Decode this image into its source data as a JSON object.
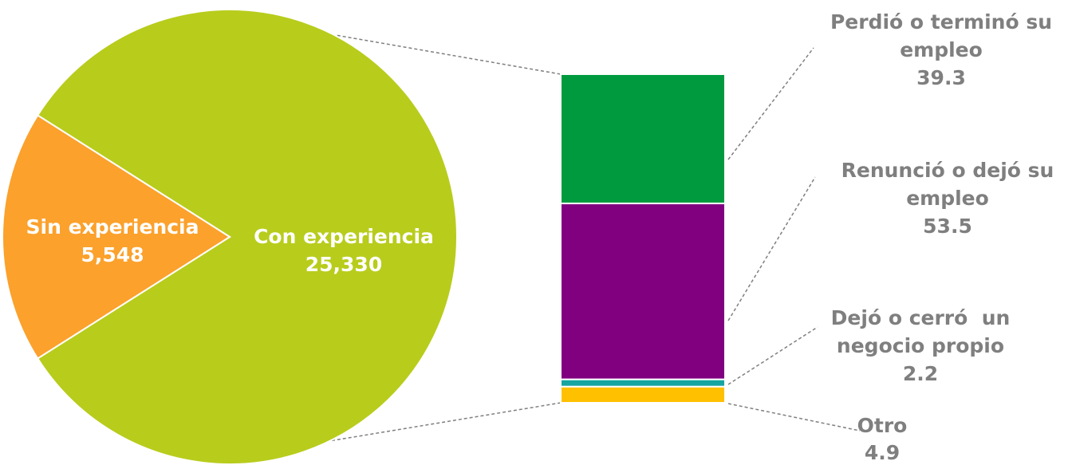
{
  "chart_data": [
    {
      "type": "pie",
      "slices": [
        {
          "label": "Con experiencia",
          "value": 25330,
          "display": "25,330",
          "color": "#b8cc1c"
        },
        {
          "label": "Sin experiencia",
          "value": 5548,
          "display": "5,548",
          "color": "#fba12c"
        }
      ]
    },
    {
      "type": "bar",
      "stacked": true,
      "segments": [
        {
          "label_lines": [
            "Perdió o terminó su",
            "empleo"
          ],
          "value": 39.3,
          "display": "39.3",
          "color": "#009a3e"
        },
        {
          "label_lines": [
            "Renunció o dejó su",
            "empleo"
          ],
          "value": 53.5,
          "display": "53.5",
          "color": "#800080"
        },
        {
          "label_lines": [
            "Dejó o cerró  un",
            "negocio propio"
          ],
          "value": 2.2,
          "display": "2.2",
          "color": "#16a5a0"
        },
        {
          "label_lines": [
            "Otro"
          ],
          "value": 4.9,
          "display": "4.9",
          "color": "#ffc000"
        }
      ]
    }
  ]
}
